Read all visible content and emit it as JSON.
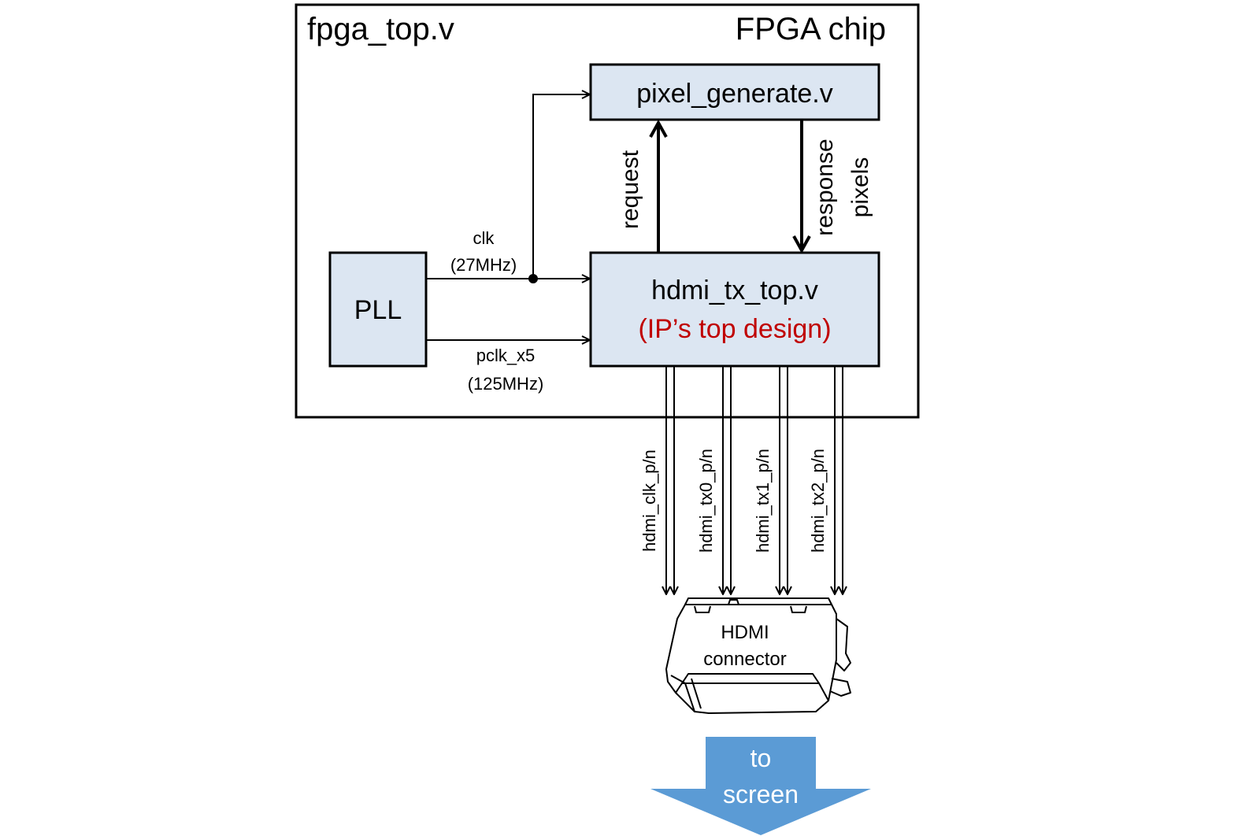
{
  "title": "fpga_top.v",
  "chip_label": "FPGA chip",
  "blocks": {
    "pixel_generate": "pixel_generate.v",
    "pll": "PLL",
    "hdmi_tx": "hdmi_tx_top.v",
    "hdmi_tx_note": "(IP’s top design)"
  },
  "signals": {
    "clk_name": "clk",
    "clk_freq": "(27MHz)",
    "pclk_name": "pclk_x5",
    "pclk_freq": "(125MHz)",
    "request": "request",
    "response": "response",
    "pixels": "pixels",
    "hdmi_clk": "hdmi_clk_p/n",
    "hdmi_tx0": "hdmi_tx0_p/n",
    "hdmi_tx1": "hdmi_tx1_p/n",
    "hdmi_tx2": "hdmi_tx2_p/n"
  },
  "connector": {
    "line1": "HDMI",
    "line2": "connector"
  },
  "output": {
    "line1": "to",
    "line2": "screen"
  },
  "colors": {
    "block_fill": "#dce6f2",
    "note_red": "#c00000",
    "arrow_blue": "#5b9bd5"
  }
}
